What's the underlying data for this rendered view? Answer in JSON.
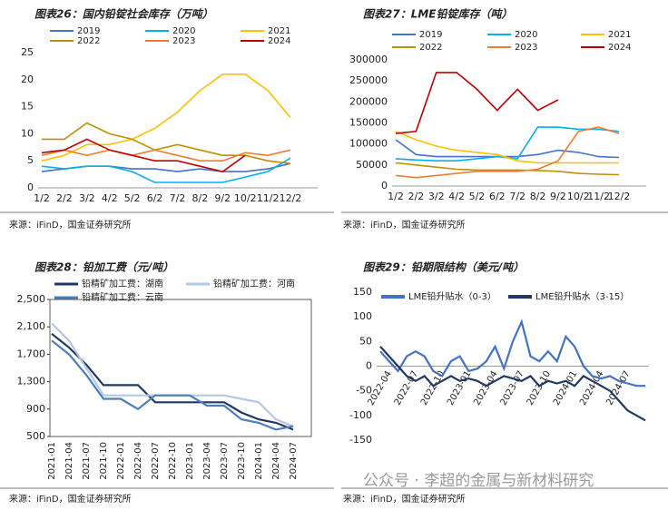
{
  "chart_data": [
    {
      "type": "line",
      "title": "图表26：国内铅锭社会库存（万吨）",
      "source": "来源：iFinD，国金证券研究所",
      "categories": [
        "1/2",
        "2/2",
        "3/2",
        "4/2",
        "5/2",
        "6/2",
        "7/2",
        "8/2",
        "9/2",
        "10/2",
        "11/2",
        "12/2"
      ],
      "series": [
        {
          "name": "2019",
          "color": "#4472c4",
          "values": [
            3,
            3.5,
            4,
            4,
            3.5,
            3.5,
            3,
            3.5,
            3,
            3,
            3.5,
            4.5
          ]
        },
        {
          "name": "2020",
          "color": "#00b0f0",
          "values": [
            4,
            3.5,
            4,
            4,
            3,
            1,
            1,
            1,
            1,
            2,
            3,
            5.5
          ]
        },
        {
          "name": "2021",
          "color": "#ffc000",
          "values": [
            5,
            6,
            8,
            8,
            9,
            11,
            14,
            18,
            21,
            21,
            18,
            13
          ]
        },
        {
          "name": "2022",
          "color": "#bf9000",
          "values": [
            9,
            9,
            12,
            10,
            9,
            7,
            8,
            7,
            6,
            6,
            5,
            4.5
          ]
        },
        {
          "name": "2023",
          "color": "#ed7d31",
          "values": [
            6,
            7,
            6,
            7,
            6,
            7,
            6,
            5,
            5,
            6.5,
            6,
            7
          ]
        },
        {
          "name": "2024",
          "color": "#c00000",
          "values": [
            6.5,
            7,
            9,
            7,
            6,
            5,
            5,
            4,
            3,
            6,
            null,
            null
          ]
        }
      ],
      "ylim": [
        0,
        25
      ],
      "yticks": [
        0,
        5,
        10,
        15,
        20,
        25
      ]
    },
    {
      "type": "line",
      "title": "图表27：LME铅锭库存（吨）",
      "source": "来源：iFinD，国金证券研究所",
      "categories": [
        "1/2",
        "2/2",
        "3/2",
        "4/2",
        "5/2",
        "6/2",
        "7/2",
        "8/2",
        "9/2",
        "10/2",
        "11/2",
        "12/2"
      ],
      "series": [
        {
          "name": "2019",
          "color": "#4472c4",
          "values": [
            110000,
            75000,
            70000,
            70000,
            70000,
            70000,
            70000,
            75000,
            85000,
            80000,
            70000,
            68000
          ]
        },
        {
          "name": "2020",
          "color": "#00b0f0",
          "values": [
            65000,
            62000,
            60000,
            60000,
            65000,
            70000,
            65000,
            140000,
            140000,
            135000,
            135000,
            130000
          ]
        },
        {
          "name": "2021",
          "color": "#ffc000",
          "values": [
            130000,
            110000,
            95000,
            85000,
            80000,
            75000,
            60000,
            55000,
            55000,
            55000,
            55000,
            55000
          ]
        },
        {
          "name": "2022",
          "color": "#bf9000",
          "values": [
            55000,
            50000,
            45000,
            40000,
            38000,
            38000,
            38000,
            37000,
            35000,
            30000,
            28000,
            27000
          ]
        },
        {
          "name": "2023",
          "color": "#ed7d31",
          "values": [
            25000,
            20000,
            25000,
            30000,
            35000,
            35000,
            35000,
            40000,
            60000,
            130000,
            140000,
            125000
          ]
        },
        {
          "name": "2024",
          "color": "#c00000",
          "values": [
            125000,
            130000,
            270000,
            270000,
            230000,
            180000,
            230000,
            180000,
            205000,
            null,
            null,
            null
          ]
        }
      ],
      "ylim": [
        0,
        300000
      ],
      "yticks": [
        0,
        50000,
        100000,
        150000,
        200000,
        250000,
        300000
      ]
    },
    {
      "type": "line",
      "title": "图表28：铅加工费（元/吨）",
      "source": "来源：iFinD，国金证券研究所",
      "categories": [
        "2021-01",
        "2021-04",
        "2021-07",
        "2021-10",
        "2022-01",
        "2022-04",
        "2022-07",
        "2022-10",
        "2023-01",
        "2023-04",
        "2023-07",
        "2023-10",
        "2024-01",
        "2024-04",
        "2024-07"
      ],
      "series": [
        {
          "name": "铅精矿加工费：湖南",
          "color": "#1f3864",
          "values": [
            2000,
            1800,
            1550,
            1250,
            1250,
            1250,
            1000,
            1000,
            1000,
            1000,
            1000,
            850,
            750,
            700,
            600
          ]
        },
        {
          "name": "铅精矿加工费：河南",
          "color": "#b4c7e7",
          "values": [
            2150,
            1900,
            1500,
            1100,
            1100,
            1100,
            1100,
            1100,
            1100,
            1100,
            1100,
            1050,
            1000,
            750,
            650
          ]
        },
        {
          "name": "铅精矿加工费：云南",
          "color": "#4a7ebb",
          "values": [
            1900,
            1700,
            1400,
            1050,
            1050,
            900,
            1100,
            1100,
            1100,
            950,
            950,
            750,
            700,
            600,
            650
          ]
        }
      ],
      "ylim": [
        500,
        2500
      ],
      "yticks": [
        500,
        900,
        {
          "value": 1300,
          "label": "1,300"
        },
        {
          "value": 1700,
          "label": "1,700"
        },
        {
          "value": 2100,
          "label": "2,100"
        },
        {
          "value": 2500,
          "label": "2,500"
        }
      ]
    },
    {
      "type": "line",
      "title": "图表29：铅期限结构（美元/吨）",
      "source": "来源：iFinD，国金证券研究所",
      "categories": [
        null,
        "2022-04",
        null,
        null,
        "2022-07",
        null,
        null,
        "2022-10",
        null,
        null,
        "2023-01",
        null,
        null,
        "2023-04",
        null,
        null,
        "2023-07",
        null,
        null,
        "2023-10",
        null,
        null,
        "2024-01",
        null,
        null,
        "2024-04",
        null,
        null,
        "2024-07",
        null,
        null
      ],
      "series": [
        {
          "name": "LME铅升贴水（0-3）",
          "color": "#4472c4",
          "values": [
            30,
            10,
            -10,
            20,
            30,
            20,
            -10,
            -20,
            10,
            20,
            -10,
            -5,
            10,
            40,
            -5,
            50,
            90,
            20,
            10,
            30,
            10,
            60,
            40,
            0,
            -20,
            -25,
            -20,
            -30,
            -35,
            -40,
            -40
          ]
        },
        {
          "name": "LME铅升贴水（3-15）",
          "color": "#203864",
          "values": [
            40,
            20,
            0,
            -20,
            -30,
            -20,
            -40,
            -30,
            -20,
            -30,
            -25,
            -30,
            -40,
            -30,
            -20,
            -25,
            -30,
            -20,
            -40,
            -30,
            -35,
            -30,
            -40,
            -20,
            -30,
            -40,
            -50,
            -70,
            -90,
            -100,
            -110
          ]
        }
      ],
      "ylim": [
        -150,
        150
      ],
      "yticks": [
        -150,
        -100,
        -50,
        0,
        50,
        100,
        150
      ]
    }
  ],
  "watermark": "公众号 · 李超的金属与新材料研究"
}
